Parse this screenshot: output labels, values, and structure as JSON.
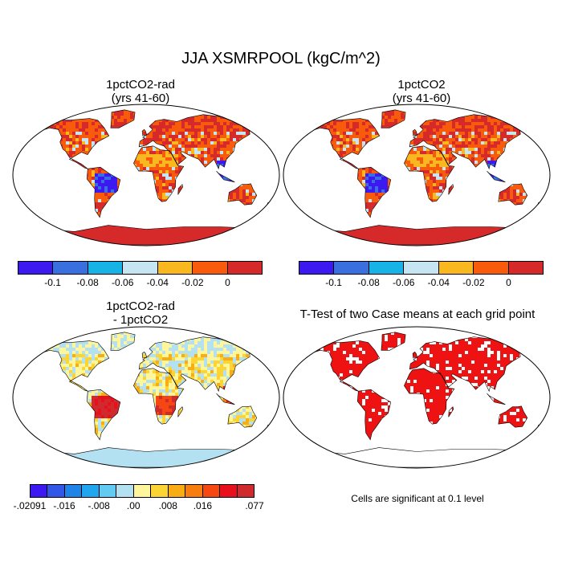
{
  "title": "JJA XSMRPOOL (kgC/m^2)",
  "panels": {
    "top_left": {
      "title": "1pctCO2-rad\n(yrs 41-60)"
    },
    "top_right": {
      "title": "1pctCO2\n(yrs 41-60)"
    },
    "bottom_left": {
      "title": "1pctCO2-rad\n- 1pctCO2"
    },
    "bottom_right": {
      "title": "T-Test of two Case means at each grid point"
    }
  },
  "colorbar_top": {
    "colors": [
      "#3b19f0",
      "#3a6fe0",
      "#17b2e6",
      "#c6e5f2",
      "#f9b81f",
      "#f95b0c",
      "#d6292a"
    ],
    "ticks": [
      "-0.1",
      "-0.08",
      "-0.06",
      "-0.04",
      "-0.02",
      "0"
    ]
  },
  "colorbar_bottom": {
    "colors": [
      "#3b19f0",
      "#3256e8",
      "#1f83e7",
      "#20a6ef",
      "#63cbf2",
      "#b3e1f1",
      "#fff59a",
      "#fcd535",
      "#f9ad15",
      "#f77d0f",
      "#f64713",
      "#e8101d",
      "#cf2a2d"
    ],
    "ticks": [
      "-.02091",
      "-.016",
      "-.008",
      ".00",
      ".008",
      ".016",
      ".077"
    ]
  },
  "significance_note": "Cells are significant at 0.1 level",
  "colors": {
    "land_sig": "#ee1212",
    "ocean": "#ffffff",
    "outline": "#000000"
  }
}
